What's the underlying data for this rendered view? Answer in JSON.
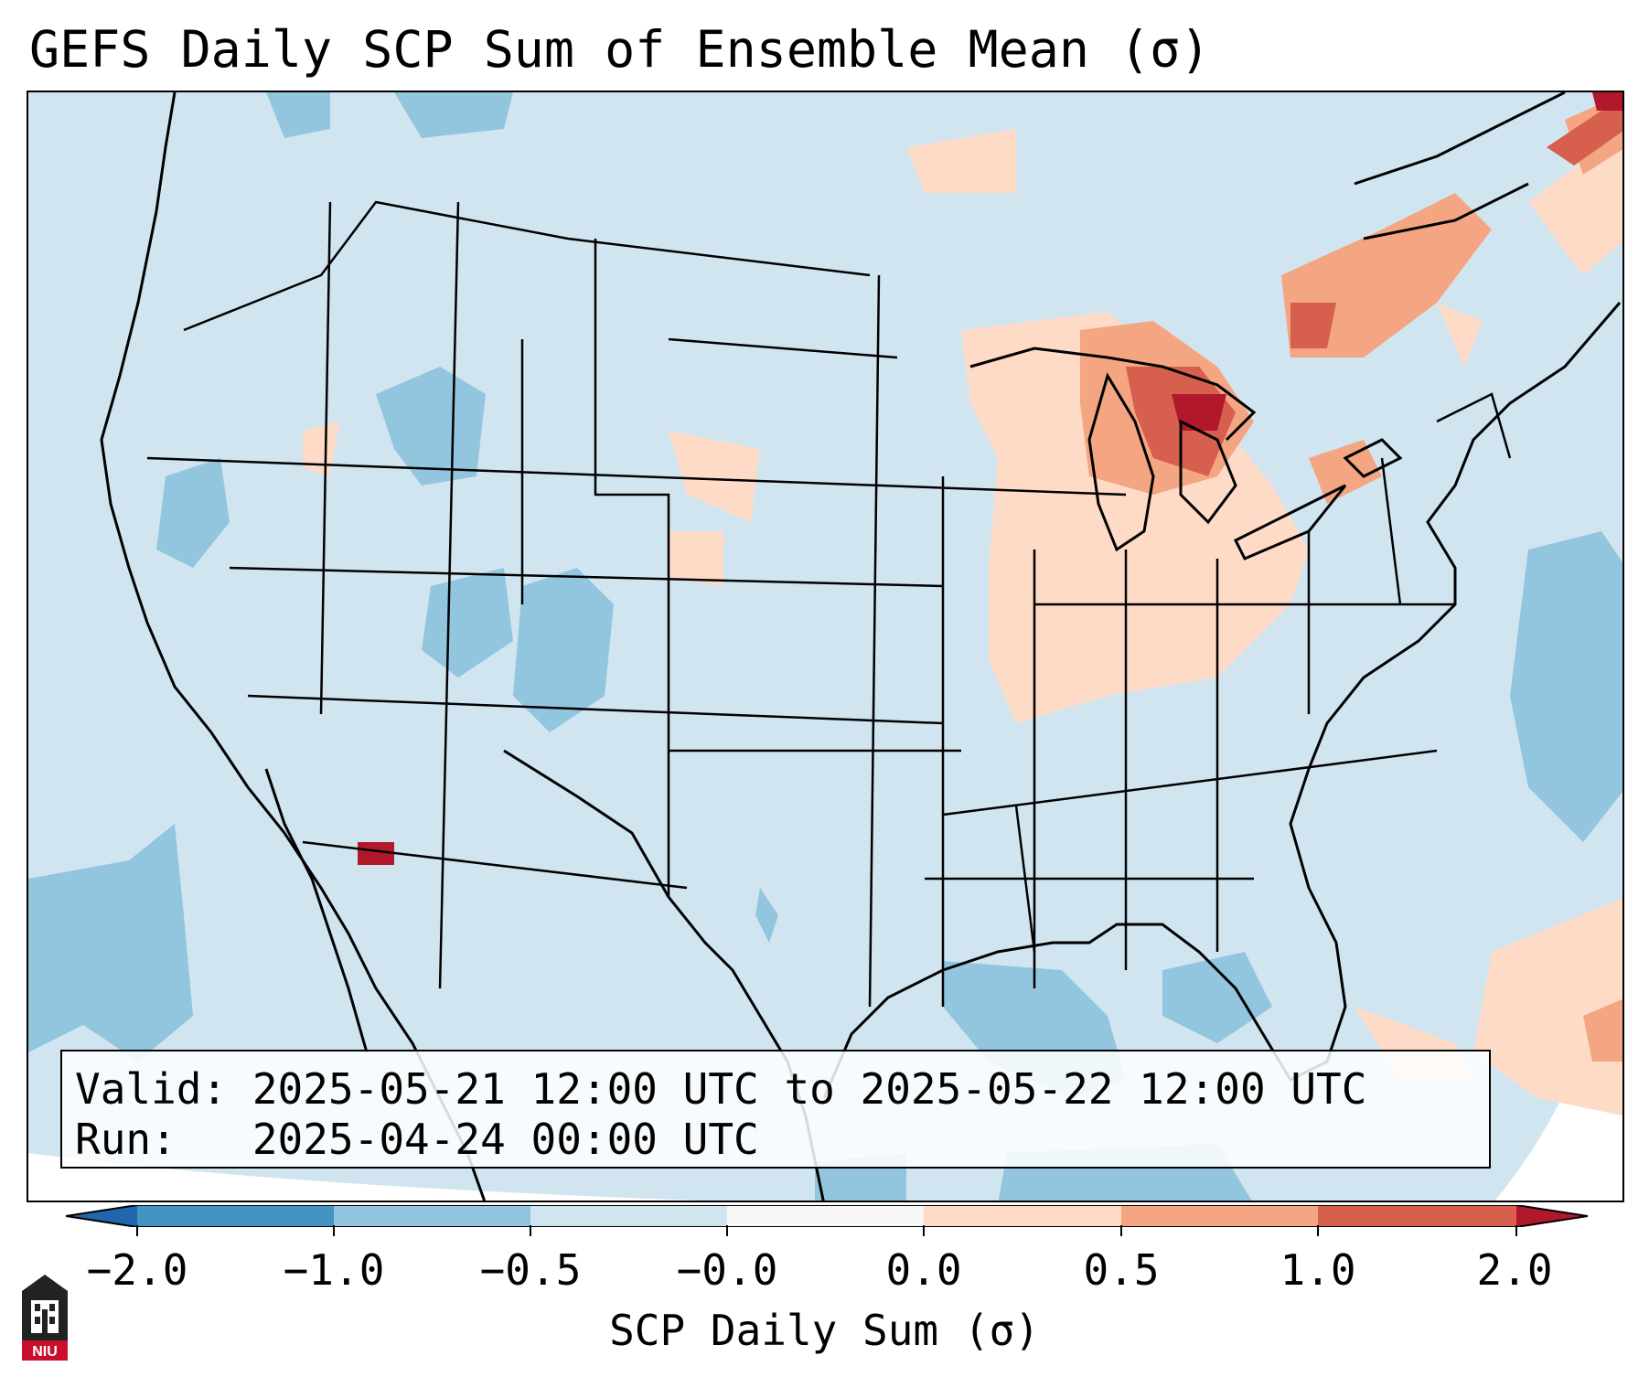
{
  "title": "GEFS Daily SCP Sum of Ensemble Mean (σ)",
  "info": {
    "valid_line": "Valid: 2025-05-21 12:00 UTC to 2025-05-22 12:00 UTC",
    "run_line": "Run:   2025-04-24 00:00 UTC"
  },
  "colorbar": {
    "label": "SCP Daily Sum (σ)",
    "ticks": [
      "−2.0",
      "−1.0",
      "−0.5",
      "−0.0",
      "0.0",
      "0.5",
      "1.0",
      "2.0"
    ],
    "colors": [
      "#4393c3",
      "#92c5de",
      "#d1e5f0",
      "#fddbc7",
      "#f4a582",
      "#d6604d",
      "#b2182b"
    ],
    "extend_low_color": "#2166ac",
    "extend_high_color": "#b2182b"
  },
  "logo": {
    "text": "NIU"
  },
  "map": {
    "background_color": "#d1e5f0",
    "anomaly_regions": [
      {
        "region": "Great Lakes / Michigan",
        "level": "1.0 to 2.0"
      },
      {
        "region": "Quebec / St. Lawrence",
        "level": "0.5 to 1.0"
      },
      {
        "region": "Ohio Valley / Midwest",
        "level": "0.0 to 0.5"
      },
      {
        "region": "Western Atlantic",
        "level": "0.0 to 0.5"
      },
      {
        "region": "Intermountain West / Colorado",
        "level": "-1.0 to -0.5"
      },
      {
        "region": "Western Atlantic offshore",
        "level": "-1.0 to -0.5"
      },
      {
        "region": "Eastern Pacific",
        "level": "-1.0 to -0.5"
      },
      {
        "region": "Gulf of Mexico",
        "level": "-1.0 to -0.5"
      },
      {
        "region": "Gulf of California",
        "level": "1.0 to 2.0"
      }
    ]
  }
}
